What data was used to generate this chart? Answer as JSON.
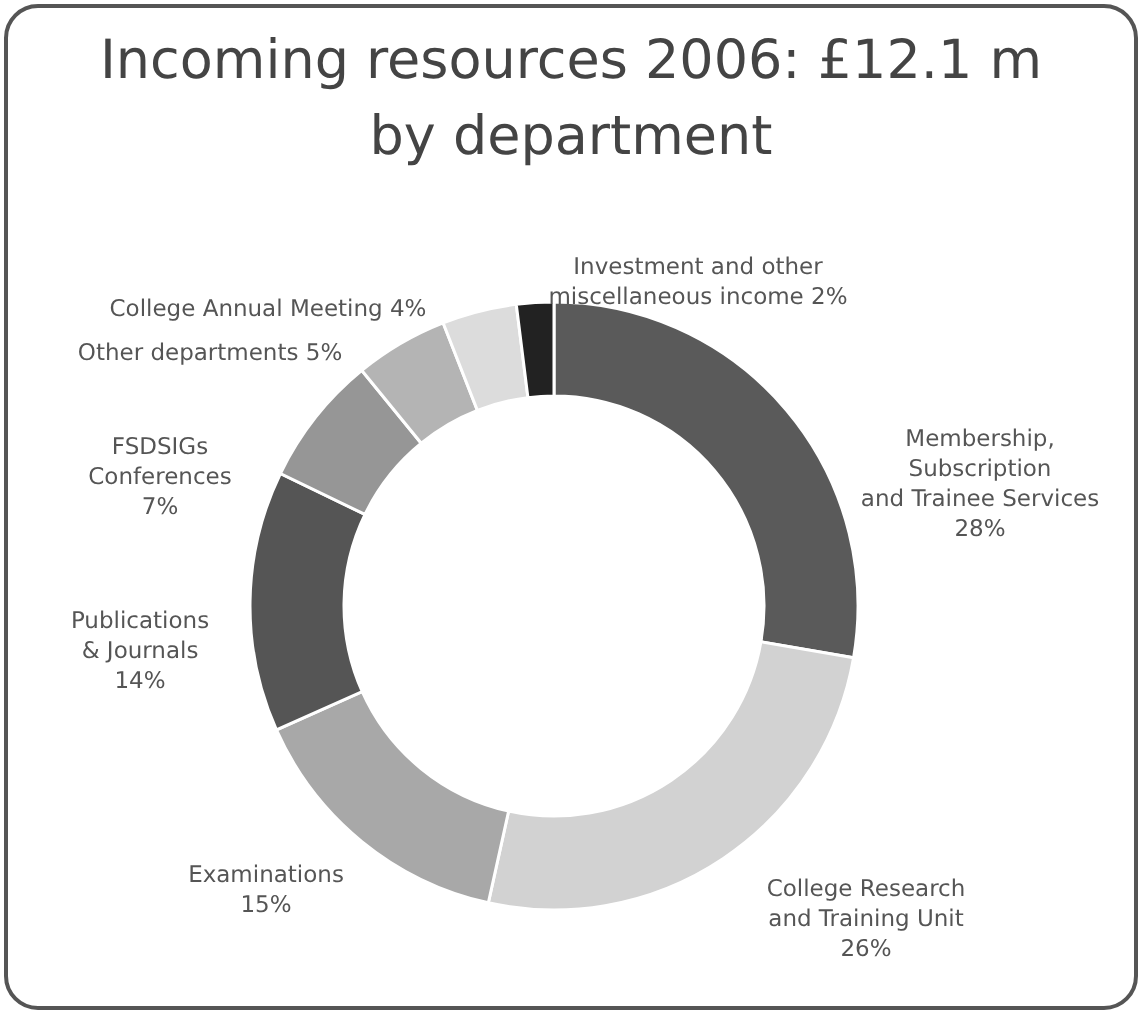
{
  "chart_data": {
    "type": "donut",
    "title": "Incoming resources 2006: £12.1 m\nby department",
    "categories": [
      "Membership,\nSubscription\nand Trainee Services",
      "College Research\nand Training Unit",
      "Examinations",
      "Publications\n& Journals",
      "FSDSIGs\nConferences",
      "Other departments",
      "College Annual Meeting",
      "Investment and other\nmiscellaneous income"
    ],
    "values": [
      28,
      26,
      15,
      14,
      7,
      5,
      4,
      2
    ],
    "value_labels": [
      "28%",
      "26%",
      "15%",
      "14%",
      "7%",
      "5%",
      "4%",
      "2%"
    ],
    "colors": [
      "#5a5a5a",
      "#d2d2d2",
      "#a8a8a8",
      "#555555",
      "#969696",
      "#b4b4b4",
      "#dcdcdc",
      "#222222"
    ]
  }
}
